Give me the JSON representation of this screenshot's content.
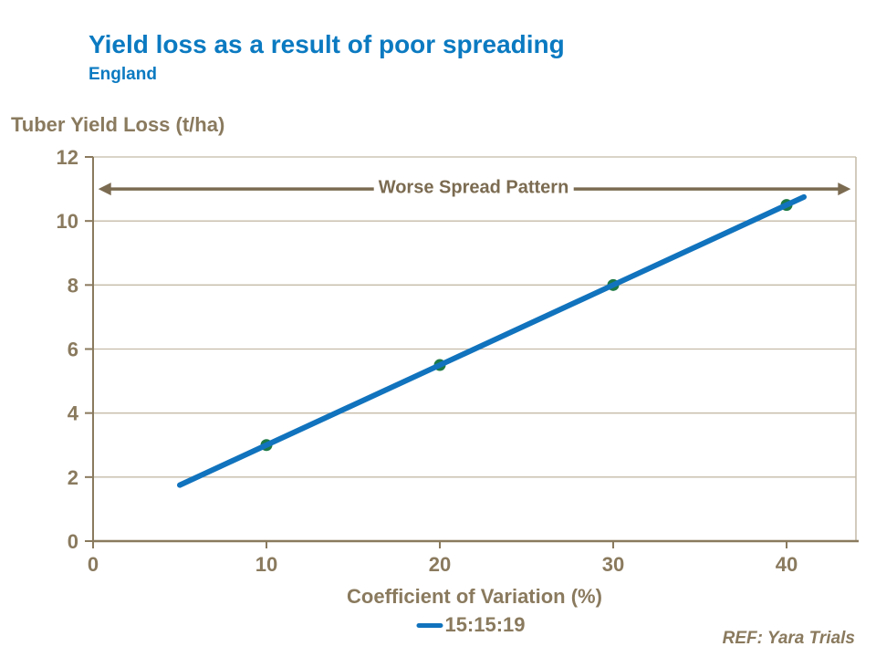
{
  "header": {
    "title": "Yield loss as a result of poor spreading",
    "subtitle": "England"
  },
  "footer": {
    "ref": "REF: Yara Trials"
  },
  "colors": {
    "title_blue": "#0b7ac1",
    "text_brown": "#8a7a5e",
    "axis_brown": "#8a7a5e",
    "grid": "#c4baa7",
    "arrow_brown": "#7b6b51",
    "line_blue": "#1173bd",
    "marker_green": "#1e7a45"
  },
  "chart_data": {
    "type": "line",
    "title": "Yield loss as a result of poor spreading",
    "subtitle": "England",
    "xlabel": "Coefficient of Variation (%)",
    "ylabel": "Tuber Yield Loss (t/ha)",
    "xlim": [
      0,
      44
    ],
    "ylim": [
      0,
      12
    ],
    "xticks": [
      0,
      10,
      20,
      30,
      40
    ],
    "yticks": [
      0,
      2,
      4,
      6,
      8,
      10,
      12
    ],
    "grid": "horizontal",
    "legend_position": "bottom",
    "annotation": {
      "text": "Worse Spread Pattern",
      "style": "double-headed-arrow",
      "y": 11,
      "x_start": 0.3,
      "x_end": 43.7
    },
    "series": [
      {
        "name": "15:15:19",
        "x": [
          5,
          10,
          20,
          30,
          40,
          41
        ],
        "y": [
          1.75,
          3,
          5.5,
          8,
          10.5,
          10.75
        ],
        "markers": [
          [
            10,
            3
          ],
          [
            20,
            5.5
          ],
          [
            30,
            8
          ],
          [
            40,
            10.5
          ]
        ],
        "slope_note": "yield_loss = 0.25 * CV + 0.5"
      }
    ]
  }
}
